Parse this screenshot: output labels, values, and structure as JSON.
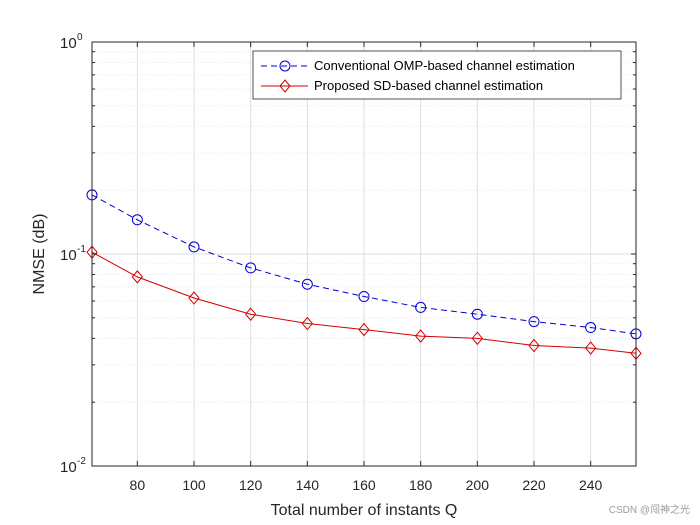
{
  "chart_data": {
    "type": "line",
    "title": "",
    "xlabel": "Total number of instants Q",
    "ylabel": "NMSE (dB)",
    "xscale": "linear",
    "yscale": "log",
    "xlim": [
      64,
      256
    ],
    "ylim": [
      0.01,
      1
    ],
    "xticks": [
      80,
      100,
      120,
      140,
      160,
      180,
      200,
      220,
      240
    ],
    "xtick_labels": [
      "80",
      "100",
      "120",
      "140",
      "160",
      "180",
      "200",
      "220",
      "240"
    ],
    "yticks": [
      {
        "value": 0.01,
        "base": "10",
        "exp": "-2"
      },
      {
        "value": 0.1,
        "base": "10",
        "exp": "-1"
      },
      {
        "value": 1,
        "base": "10",
        "exp": "0"
      }
    ],
    "grid": true,
    "legend_position": "top-right",
    "x": [
      64,
      80,
      100,
      120,
      140,
      160,
      180,
      200,
      220,
      240,
      256
    ],
    "series": [
      {
        "name": "Conventional OMP-based channel estimation",
        "color": "#0000d4",
        "line": "dashed",
        "marker": "circle",
        "values": [
          0.19,
          0.145,
          0.108,
          0.086,
          0.072,
          0.063,
          0.056,
          0.052,
          0.048,
          0.045,
          0.042
        ]
      },
      {
        "name": "Proposed SD-based channel estimation",
        "color": "#d40000",
        "line": "solid",
        "marker": "diamond",
        "values": [
          0.102,
          0.078,
          0.062,
          0.052,
          0.047,
          0.044,
          0.041,
          0.04,
          0.037,
          0.036,
          0.034
        ]
      }
    ]
  },
  "watermark": "CSDN @闯神之光"
}
